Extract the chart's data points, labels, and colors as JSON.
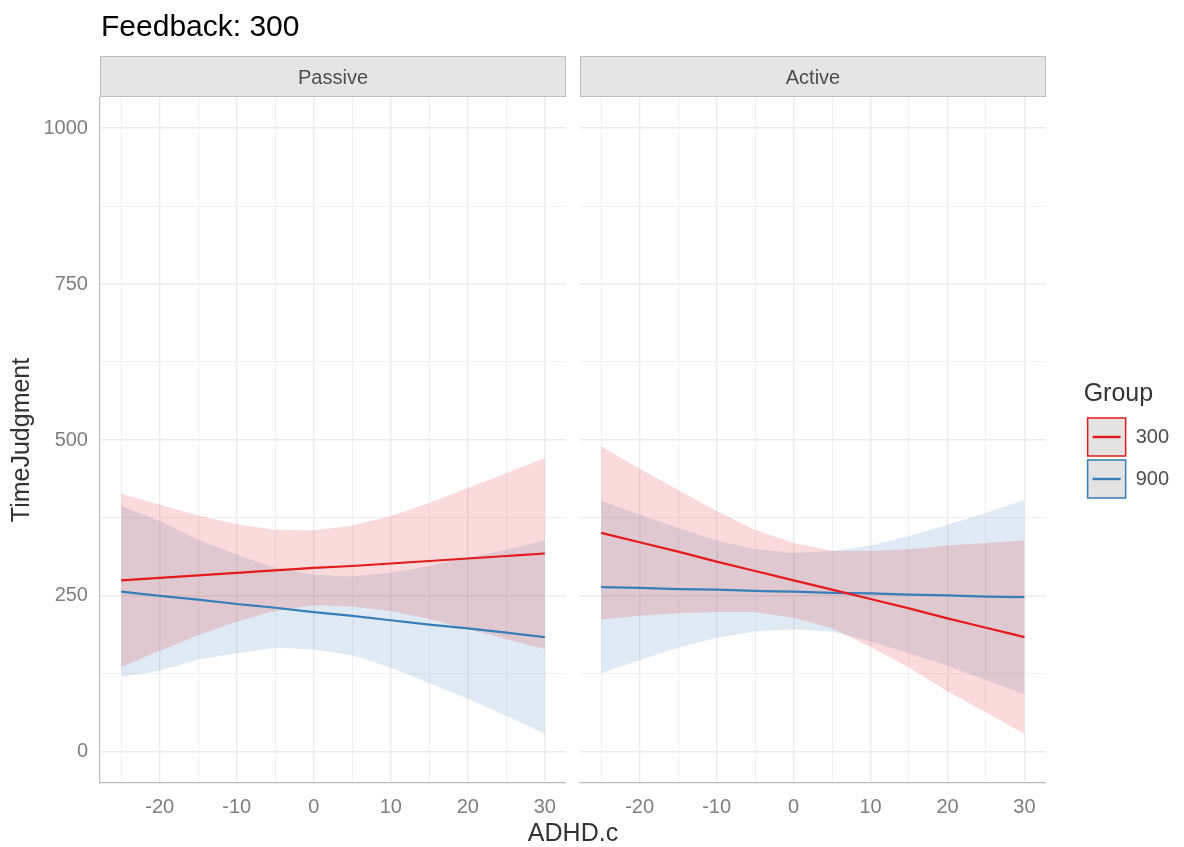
{
  "chart_data": [
    {
      "type": "line",
      "title": "Feedback: 300",
      "subtitle": "Passive",
      "xlabel": "ADHD.c",
      "ylabel": "TimeJudgment",
      "x": [
        -25,
        -20,
        -15,
        -10,
        -5,
        0,
        5,
        10,
        15,
        20,
        25,
        30
      ],
      "series": [
        {
          "color": "#e41a1c",
          "values": [
            275,
            279,
            283,
            287,
            291,
            295,
            298,
            302,
            306,
            310,
            314,
            318
          ],
          "lower": [
            136,
            162,
            187,
            209,
            226,
            235,
            233,
            226,
            213,
            197,
            181,
            165
          ],
          "upper": [
            414,
            396,
            379,
            365,
            356,
            355,
            363,
            378,
            399,
            423,
            447,
            471
          ]
        },
        {
          "color": "#377eb8",
          "values": [
            257,
            250,
            244,
            237,
            231,
            224,
            218,
            211,
            204,
            198,
            191,
            184
          ],
          "lower": [
            120,
            130,
            148,
            158,
            167,
            164,
            155,
            135,
            110,
            85,
            58,
            29
          ],
          "upper": [
            394,
            370,
            340,
            316,
            295,
            284,
            281,
            287,
            298,
            311,
            324,
            339
          ]
        }
      ],
      "xlim": [
        -27.75,
        32.75
      ],
      "ylim": [
        -50,
        1050
      ],
      "xticks": [
        {
          "value": -25,
          "label": null
        },
        -20,
        {
          "value": -15,
          "label": null
        },
        -10,
        {
          "value": -5,
          "label": null
        },
        0,
        {
          "value": 5,
          "label": null
        },
        10,
        {
          "value": 15,
          "label": null
        },
        20,
        {
          "value": 25,
          "label": null
        },
        30
      ],
      "yticks": [
        0,
        {
          "value": 125,
          "label": null
        },
        250,
        {
          "value": 375,
          "label": null
        },
        500,
        {
          "value": 625,
          "label": null
        },
        750,
        {
          "value": 875,
          "label": null
        },
        1000
      ],
      "grid": true
    },
    {
      "type": "line",
      "subtitle": "Active",
      "x": [
        -25,
        -20,
        -15,
        -10,
        -5,
        0,
        5,
        10,
        15,
        20,
        25,
        30
      ],
      "series": [
        {
          "name": "300",
          "color": "#e41a1c",
          "values": [
            351,
            336,
            321,
            305,
            290,
            275,
            260,
            245,
            230,
            214,
            199,
            184
          ],
          "lower": [
            212,
            218,
            222,
            224,
            224,
            215,
            198,
            168,
            135,
            97,
            63,
            29
          ],
          "upper": [
            490,
            454,
            420,
            386,
            356,
            335,
            322,
            322,
            325,
            331,
            335,
            339
          ]
        },
        {
          "name": "900",
          "color": "#377eb8",
          "values": [
            264,
            263,
            261,
            260,
            258,
            257,
            255,
            254,
            252,
            251,
            249,
            248
          ],
          "lower": [
            126,
            147,
            167,
            183,
            193,
            196,
            193,
            177,
            158,
            138,
            115,
            92
          ],
          "upper": [
            403,
            380,
            359,
            339,
            325,
            319,
            322,
            331,
            346,
            364,
            383,
            404
          ]
        }
      ],
      "xlim": [
        -27.75,
        32.75
      ],
      "ylim": [
        -50,
        1050
      ],
      "xticks": [
        {
          "value": -25,
          "label": null
        },
        -20,
        {
          "value": -15,
          "label": null
        },
        -10,
        {
          "value": -5,
          "label": null
        },
        0,
        {
          "value": 5,
          "label": null
        },
        10,
        {
          "value": 15,
          "label": null
        },
        20,
        {
          "value": 25,
          "label": null
        },
        30
      ],
      "yticks": [
        0,
        {
          "value": 125,
          "label": null
        },
        250,
        {
          "value": 375,
          "label": null
        },
        500,
        {
          "value": 625,
          "label": null
        },
        750,
        {
          "value": 875,
          "label": null
        },
        1000
      ],
      "grid": true,
      "tick_labels": "x",
      "legend": "right",
      "legend_title": "Group"
    }
  ]
}
